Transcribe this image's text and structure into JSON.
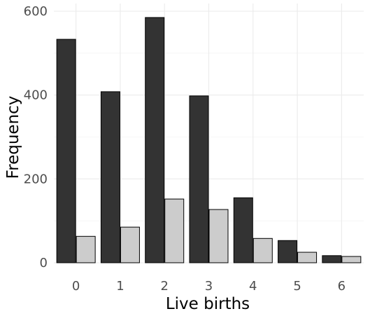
{
  "chart_data": {
    "type": "bar",
    "title": "",
    "xlabel": "Live births",
    "ylabel": "Frequency",
    "categories": [
      "0",
      "1",
      "2",
      "3",
      "4",
      "5",
      "6"
    ],
    "y_ticks": [
      "0",
      "200",
      "400",
      "600"
    ],
    "ylim": [
      0,
      600
    ],
    "grid": true,
    "legend": "none",
    "series": [
      {
        "values": [
          533,
          408,
          585,
          398,
          155,
          53,
          17
        ],
        "color": "#333333"
      },
      {
        "values": [
          63,
          85,
          152,
          127,
          58,
          25,
          15
        ],
        "color": "#cccccc"
      }
    ]
  }
}
